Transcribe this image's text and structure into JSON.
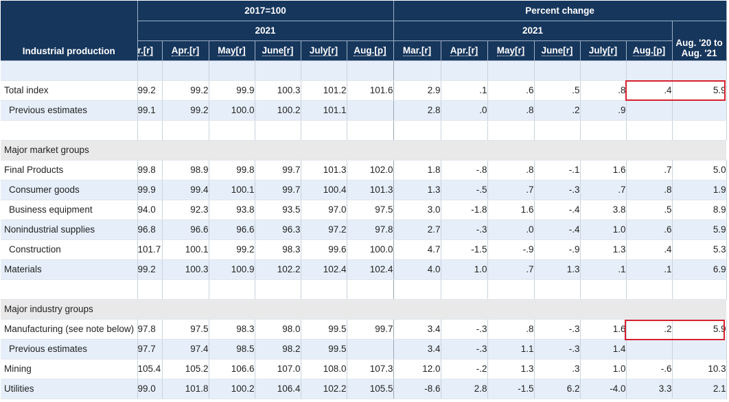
{
  "header": {
    "row_label": "Industrial production",
    "index_group": "2017=100",
    "percent_group": "Percent change",
    "index_year": "2021",
    "percent_year": "2021",
    "index_cols": [
      "r.[r]",
      "Apr.[r]",
      "May[r]",
      "June[r]",
      "July[r]",
      "Aug.[p]"
    ],
    "percent_cols": [
      "Mar.[r]",
      "Apr.[r]",
      "May[r]",
      "June[r]",
      "July[r]",
      "Aug.[p]"
    ],
    "annual_col_line1": "Aug. '20 to",
    "annual_col_line2": "Aug. '21"
  },
  "rows": [
    {
      "label": "",
      "cells": [
        "",
        "",
        "",
        "",
        "",
        "",
        "",
        "",
        "",
        "",
        "",
        "",
        ""
      ]
    },
    {
      "label": "Total index",
      "cells": [
        "99.2",
        "99.2",
        "99.9",
        "100.3",
        "101.2",
        "101.6",
        "2.9",
        ".1",
        ".6",
        ".5",
        ".8",
        ".4",
        "5.9"
      ]
    },
    {
      "label": "Previous estimates",
      "cells": [
        "99.1",
        "99.2",
        "100.0",
        "100.2",
        "101.1",
        "",
        "2.8",
        ".0",
        ".8",
        ".2",
        ".9",
        "",
        ""
      ]
    },
    {
      "label": "",
      "cells": [
        "",
        "",
        "",
        "",
        "",
        "",
        "",
        "",
        "",
        "",
        "",
        "",
        ""
      ]
    },
    {
      "label": "Major market groups",
      "cells": []
    },
    {
      "label": "Final Products",
      "cells": [
        "99.8",
        "98.9",
        "99.8",
        "99.7",
        "101.3",
        "102.0",
        "1.8",
        "-.8",
        ".8",
        "-.1",
        "1.6",
        ".7",
        "5.0"
      ]
    },
    {
      "label": "Consumer goods",
      "cells": [
        "99.9",
        "99.4",
        "100.1",
        "99.7",
        "100.4",
        "101.3",
        "1.3",
        "-.5",
        ".7",
        "-.3",
        ".7",
        ".8",
        "1.9"
      ]
    },
    {
      "label": "Business equipment",
      "cells": [
        "94.0",
        "92.3",
        "93.8",
        "93.5",
        "97.0",
        "97.5",
        "3.0",
        "-1.8",
        "1.6",
        "-.4",
        "3.8",
        ".5",
        "8.9"
      ]
    },
    {
      "label": "Nonindustrial supplies",
      "cells": [
        "96.8",
        "96.6",
        "96.6",
        "96.3",
        "97.2",
        "97.8",
        "2.7",
        "-.3",
        ".0",
        "-.4",
        "1.0",
        ".6",
        "5.9"
      ]
    },
    {
      "label": "Construction",
      "cells": [
        "101.7",
        "100.1",
        "99.2",
        "98.3",
        "99.6",
        "100.0",
        "4.7",
        "-1.5",
        "-.9",
        "-.9",
        "1.3",
        ".4",
        "5.3"
      ]
    },
    {
      "label": "Materials",
      "cells": [
        "99.2",
        "100.3",
        "100.9",
        "102.2",
        "102.4",
        "102.4",
        "4.0",
        "1.0",
        ".7",
        "1.3",
        ".1",
        ".1",
        "6.9"
      ]
    },
    {
      "label": "",
      "cells": [
        "",
        "",
        "",
        "",
        "",
        "",
        "",
        "",
        "",
        "",
        "",
        "",
        ""
      ]
    },
    {
      "label": "Major industry groups",
      "cells": []
    },
    {
      "label": "Manufacturing (see note below)",
      "cells": [
        "97.8",
        "97.5",
        "98.3",
        "98.0",
        "99.5",
        "99.7",
        "3.4",
        "-.3",
        ".8",
        "-.3",
        "1.6",
        ".2",
        "5.9"
      ]
    },
    {
      "label": "Previous estimates",
      "cells": [
        "97.7",
        "97.4",
        "98.5",
        "98.2",
        "99.5",
        "",
        "3.4",
        "-.3",
        "1.1",
        "-.3",
        "1.4",
        "",
        ""
      ]
    },
    {
      "label": "Mining",
      "cells": [
        "105.4",
        "105.2",
        "106.6",
        "107.0",
        "108.0",
        "107.3",
        "12.0",
        "-.2",
        "1.3",
        ".3",
        "1.0",
        "-.6",
        "10.3"
      ]
    },
    {
      "label": "Utilities",
      "cells": [
        "99.0",
        "101.8",
        "100.2",
        "106.4",
        "102.2",
        "105.5",
        "-8.6",
        "2.8",
        "-1.5",
        "6.2",
        "-4.0",
        "3.3",
        "2.1"
      ]
    }
  ],
  "colors": {
    "header_bg": "#16365c",
    "row_shade": "#e6eff9",
    "group_bg": "#e9e9e9",
    "highlight_border": "#d6202f"
  }
}
